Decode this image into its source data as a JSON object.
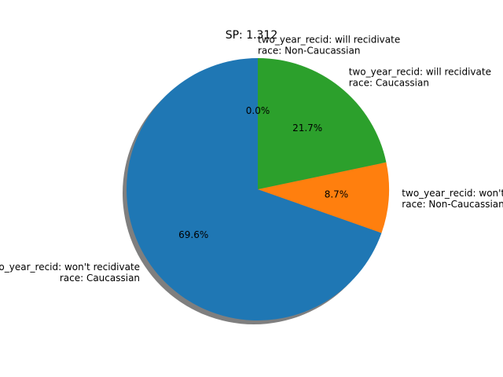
{
  "chart_data": {
    "type": "pie",
    "title": "SP: 1.312",
    "start_angle_deg": 90,
    "direction": "counterclockwise",
    "shadow": true,
    "slices": [
      {
        "label_lines": [
          "two_year_recid: won't recidivate",
          "race: Caucassian"
        ],
        "value": 69.6,
        "pct_label": "69.6%",
        "color": "#1f77b4"
      },
      {
        "label_lines": [
          "two_year_recid: won't recidivate",
          "race: Non-Caucassian"
        ],
        "value": 8.7,
        "pct_label": "8.7%",
        "color": "#ff7f0e"
      },
      {
        "label_lines": [
          "two_year_recid: will recidivate",
          "race: Caucassian"
        ],
        "value": 21.7,
        "pct_label": "21.7%",
        "color": "#2ca02c"
      },
      {
        "label_lines": [
          "two_year_recid: will recidivate",
          "race: Non-Caucassian"
        ],
        "value": 0.0,
        "pct_label": "0.0%",
        "color": "#d62728"
      }
    ]
  }
}
